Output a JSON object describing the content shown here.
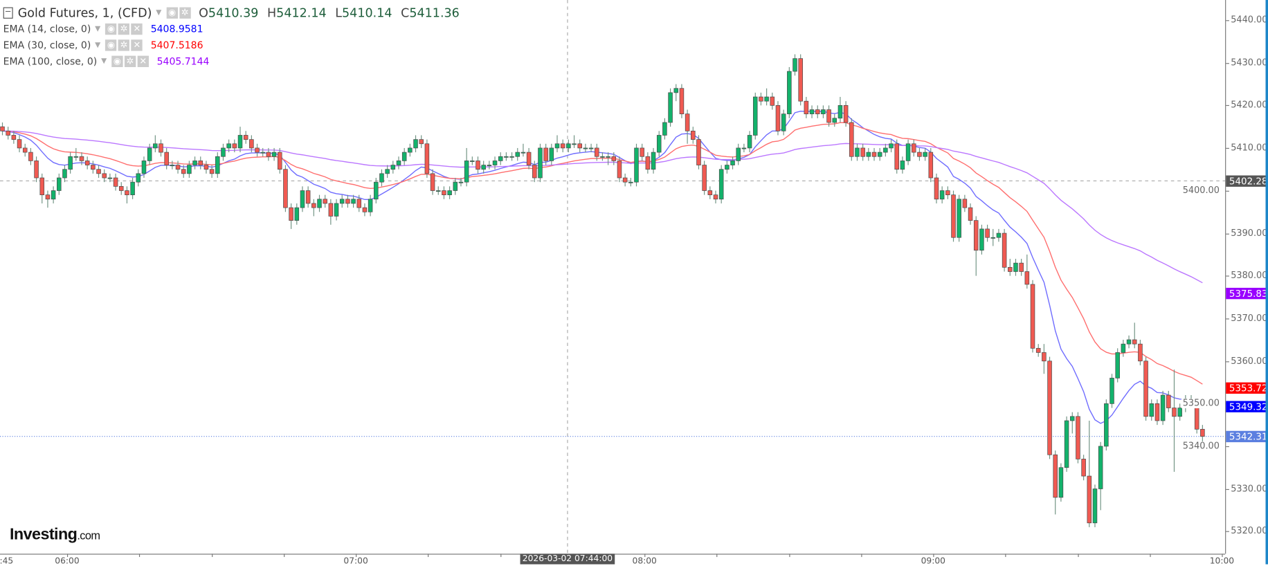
{
  "legend": {
    "title": "Gold Futures, 1, (CFD)",
    "ohlc": {
      "o_label": "O",
      "o": "5410.39",
      "h_label": "H",
      "h": "5412.14",
      "l_label": "L",
      "l": "5410.14",
      "c_label": "C",
      "c": "5411.36"
    },
    "emas": [
      {
        "name": "EMA (14, close, 0)",
        "value": "5408.9581",
        "color": "#0000ff"
      },
      {
        "name": "EMA (30, close, 0)",
        "value": "5407.5186",
        "color": "#ff0000"
      },
      {
        "name": "EMA (100, close, 0)",
        "value": "5405.7144",
        "color": "#9900ff"
      }
    ]
  },
  "logo": {
    "main": "Investing",
    "suffix": ".com"
  },
  "chart_data": {
    "type": "candlestick",
    "interval": "1 minute",
    "ylim": [
      5315,
      5445
    ],
    "y_ticks": [
      "5320.00",
      "5330.00",
      "5340.00",
      "5350.00",
      "5360.00",
      "5370.00",
      "5380.00",
      "5390.00",
      "5400.00",
      "5410.00",
      "5420.00",
      "5430.00",
      "5440.00"
    ],
    "x_ticks": [
      {
        "label": ":45",
        "time": "05:45"
      },
      {
        "label": "06:00",
        "time": "06:00"
      },
      {
        "label": "07:00",
        "time": "07:00"
      },
      {
        "label": "08:00",
        "time": "08:00"
      },
      {
        "label": "09:00",
        "time": "09:00"
      },
      {
        "label": "10:00",
        "time": "10:00"
      }
    ],
    "crosshair": {
      "time_label": "2026-03-02 07:44:00",
      "time": "07:44",
      "price": 5402.28,
      "price_label": "5402.28"
    },
    "price_labels": [
      {
        "value": 5375.83,
        "label": "5375.83",
        "color": "#9900ff",
        "series": "EMA 100"
      },
      {
        "value": 5353.72,
        "label": "5353.72",
        "color": "#ff0000",
        "series": "EMA 30"
      },
      {
        "value": 5349.32,
        "label": "5349.32",
        "color": "#0000ff",
        "series": "EMA 14"
      },
      {
        "value": 5342.31,
        "label": "5342.31",
        "color": "#5b7fe0",
        "series": "last"
      }
    ],
    "colors": {
      "up": "#13b26b",
      "down": "#f05a52",
      "wick": "#6f9282",
      "ema14": "#6f6cff",
      "ema30": "#ff6e6e",
      "ema100": "#bb77ff"
    },
    "ema_periods": [
      14,
      30,
      100
    ],
    "candles_ohlc": [
      [
        5415,
        5416,
        5413,
        5414
      ],
      [
        5414,
        5415,
        5412,
        5413
      ],
      [
        5413,
        5414,
        5411,
        5412
      ],
      [
        5412,
        5413,
        5409,
        5410
      ],
      [
        5410,
        5411,
        5408,
        5409
      ],
      [
        5409,
        5410,
        5406,
        5407
      ],
      [
        5407,
        5408,
        5402,
        5403
      ],
      [
        5403,
        5404,
        5397,
        5399
      ],
      [
        5399,
        5400,
        5396,
        5398
      ],
      [
        5398,
        5401,
        5397,
        5400
      ],
      [
        5400,
        5404,
        5399,
        5403
      ],
      [
        5403,
        5406,
        5402,
        5405
      ],
      [
        5405,
        5409,
        5404,
        5408
      ],
      [
        5408,
        5410,
        5407,
        5408
      ],
      [
        5408,
        5409,
        5406,
        5407
      ],
      [
        5407,
        5408,
        5405,
        5406
      ],
      [
        5406,
        5407,
        5404,
        5405
      ],
      [
        5405,
        5406,
        5403,
        5404
      ],
      [
        5404,
        5405,
        5402,
        5403
      ],
      [
        5403,
        5404,
        5402,
        5403
      ],
      [
        5403,
        5404,
        5400,
        5401
      ],
      [
        5401,
        5402,
        5399,
        5400
      ],
      [
        5400,
        5401,
        5397,
        5399
      ],
      [
        5399,
        5403,
        5398,
        5402
      ],
      [
        5402,
        5405,
        5401,
        5404
      ],
      [
        5404,
        5408,
        5403,
        5407
      ],
      [
        5407,
        5411,
        5406,
        5410
      ],
      [
        5410,
        5413,
        5409,
        5411
      ],
      [
        5411,
        5412,
        5408,
        5409
      ],
      [
        5409,
        5410,
        5405,
        5406
      ],
      [
        5406,
        5407,
        5405,
        5406
      ],
      [
        5406,
        5407,
        5404,
        5405
      ],
      [
        5405,
        5406,
        5403,
        5404
      ],
      [
        5404,
        5407,
        5403,
        5406
      ],
      [
        5406,
        5408,
        5405,
        5407
      ],
      [
        5407,
        5408,
        5405,
        5406
      ],
      [
        5406,
        5407,
        5404,
        5405
      ],
      [
        5405,
        5406,
        5403,
        5404
      ],
      [
        5404,
        5409,
        5403,
        5408
      ],
      [
        5408,
        5411,
        5407,
        5410
      ],
      [
        5410,
        5412,
        5409,
        5411
      ],
      [
        5411,
        5412,
        5409,
        5410
      ],
      [
        5410,
        5415,
        5409,
        5413
      ],
      [
        5413,
        5414,
        5411,
        5412
      ],
      [
        5412,
        5413,
        5409,
        5410
      ],
      [
        5410,
        5411,
        5408,
        5409
      ],
      [
        5409,
        5410,
        5408,
        5409
      ],
      [
        5409,
        5410,
        5407,
        5408
      ],
      [
        5408,
        5410,
        5407,
        5409
      ],
      [
        5409,
        5410,
        5404,
        5405
      ],
      [
        5405,
        5406,
        5395,
        5396
      ],
      [
        5396,
        5397,
        5391,
        5393
      ],
      [
        5393,
        5397,
        5392,
        5396
      ],
      [
        5396,
        5401,
        5395,
        5400
      ],
      [
        5400,
        5401,
        5396,
        5397
      ],
      [
        5397,
        5398,
        5394,
        5396
      ],
      [
        5396,
        5399,
        5395,
        5398
      ],
      [
        5398,
        5399,
        5396,
        5397
      ],
      [
        5397,
        5398,
        5392,
        5394
      ],
      [
        5394,
        5398,
        5393,
        5397
      ],
      [
        5397,
        5399,
        5396,
        5398
      ],
      [
        5398,
        5399,
        5396,
        5397
      ],
      [
        5397,
        5399,
        5396,
        5398
      ],
      [
        5398,
        5399,
        5395,
        5396
      ],
      [
        5396,
        5397,
        5394,
        5395
      ],
      [
        5395,
        5399,
        5394,
        5398
      ],
      [
        5398,
        5403,
        5397,
        5402
      ],
      [
        5402,
        5405,
        5401,
        5404
      ],
      [
        5404,
        5406,
        5403,
        5405
      ],
      [
        5405,
        5407,
        5404,
        5406
      ],
      [
        5406,
        5408,
        5405,
        5407
      ],
      [
        5407,
        5410,
        5406,
        5409
      ],
      [
        5409,
        5411,
        5408,
        5410
      ],
      [
        5410,
        5413,
        5409,
        5412
      ],
      [
        5412,
        5413,
        5410,
        5411
      ],
      [
        5411,
        5412,
        5403,
        5404
      ],
      [
        5404,
        5405,
        5399,
        5400
      ],
      [
        5400,
        5401,
        5399,
        5400
      ],
      [
        5400,
        5401,
        5398,
        5399
      ],
      [
        5399,
        5401,
        5398,
        5400
      ],
      [
        5400,
        5403,
        5399,
        5402
      ],
      [
        5402,
        5403,
        5401,
        5402
      ],
      [
        5402,
        5410,
        5401,
        5407
      ],
      [
        5407,
        5408,
        5406,
        5407
      ],
      [
        5407,
        5408,
        5404,
        5405
      ],
      [
        5405,
        5407,
        5404,
        5406
      ],
      [
        5406,
        5407,
        5405,
        5406
      ],
      [
        5406,
        5408,
        5405,
        5407
      ],
      [
        5407,
        5409,
        5406,
        5408
      ],
      [
        5408,
        5409,
        5407,
        5408
      ],
      [
        5408,
        5409,
        5407,
        5408
      ],
      [
        5408,
        5410,
        5407,
        5409
      ],
      [
        5409,
        5411,
        5408,
        5409
      ],
      [
        5409,
        5410,
        5405,
        5406
      ],
      [
        5406,
        5407,
        5402,
        5403
      ],
      [
        5403,
        5411,
        5402,
        5410
      ],
      [
        5410,
        5411,
        5406,
        5407
      ],
      [
        5407,
        5411,
        5406,
        5410
      ],
      [
        5410,
        5413,
        5409,
        5411
      ],
      [
        5411,
        5412,
        5409,
        5410
      ],
      [
        5410,
        5412,
        5409,
        5411
      ],
      [
        5411,
        5413,
        5410,
        5411
      ],
      [
        5411,
        5412,
        5409,
        5410
      ],
      [
        5410,
        5411,
        5409,
        5410
      ],
      [
        5410,
        5411,
        5409,
        5410
      ],
      [
        5410,
        5411,
        5407,
        5408
      ],
      [
        5408,
        5409,
        5407,
        5408
      ],
      [
        5408,
        5409,
        5406,
        5408
      ],
      [
        5408,
        5409,
        5406,
        5407
      ],
      [
        5407,
        5408,
        5402,
        5403
      ],
      [
        5403,
        5404,
        5401,
        5402
      ],
      [
        5402,
        5403,
        5401,
        5402
      ],
      [
        5402,
        5411,
        5401,
        5410
      ],
      [
        5410,
        5411,
        5407,
        5408
      ],
      [
        5408,
        5409,
        5404,
        5405
      ],
      [
        5405,
        5410,
        5404,
        5409
      ],
      [
        5409,
        5414,
        5408,
        5413
      ],
      [
        5413,
        5417,
        5412,
        5416
      ],
      [
        5416,
        5424,
        5415,
        5423
      ],
      [
        5423,
        5425,
        5421,
        5424
      ],
      [
        5424,
        5425,
        5417,
        5418
      ],
      [
        5418,
        5419,
        5411,
        5414
      ],
      [
        5414,
        5415,
        5411,
        5412
      ],
      [
        5412,
        5413,
        5405,
        5406
      ],
      [
        5406,
        5407,
        5399,
        5400
      ],
      [
        5400,
        5401,
        5398,
        5399
      ],
      [
        5399,
        5400,
        5397,
        5398
      ],
      [
        5398,
        5406,
        5397,
        5405
      ],
      [
        5405,
        5407,
        5404,
        5406
      ],
      [
        5406,
        5408,
        5405,
        5407
      ],
      [
        5407,
        5411,
        5406,
        5410
      ],
      [
        5410,
        5411,
        5409,
        5410
      ],
      [
        5410,
        5414,
        5409,
        5413
      ],
      [
        5413,
        5423,
        5412,
        5422
      ],
      [
        5422,
        5423,
        5420,
        5421
      ],
      [
        5421,
        5424,
        5420,
        5422
      ],
      [
        5422,
        5423,
        5419,
        5420
      ],
      [
        5420,
        5421,
        5413,
        5414
      ],
      [
        5414,
        5419,
        5413,
        5418
      ],
      [
        5418,
        5429,
        5417,
        5428
      ],
      [
        5428,
        5432,
        5427,
        5431
      ],
      [
        5431,
        5432,
        5420,
        5421
      ],
      [
        5421,
        5422,
        5417,
        5418
      ],
      [
        5418,
        5420,
        5417,
        5419
      ],
      [
        5419,
        5420,
        5417,
        5418
      ],
      [
        5418,
        5420,
        5417,
        5419
      ],
      [
        5419,
        5420,
        5415,
        5416
      ],
      [
        5416,
        5418,
        5415,
        5417
      ],
      [
        5417,
        5422,
        5416,
        5420
      ],
      [
        5420,
        5421,
        5415,
        5416
      ],
      [
        5416,
        5417,
        5407,
        5408
      ],
      [
        5408,
        5411,
        5407,
        5410
      ],
      [
        5410,
        5411,
        5407,
        5408
      ],
      [
        5408,
        5410,
        5407,
        5409
      ],
      [
        5409,
        5410,
        5407,
        5408
      ],
      [
        5408,
        5410,
        5407,
        5409
      ],
      [
        5409,
        5411,
        5408,
        5410
      ],
      [
        5410,
        5412,
        5409,
        5411
      ],
      [
        5411,
        5412,
        5404,
        5405
      ],
      [
        5405,
        5408,
        5404,
        5407
      ],
      [
        5407,
        5412,
        5406,
        5411
      ],
      [
        5411,
        5412,
        5408,
        5409
      ],
      [
        5409,
        5410,
        5407,
        5408
      ],
      [
        5408,
        5410,
        5407,
        5409
      ],
      [
        5409,
        5410,
        5402,
        5403
      ],
      [
        5403,
        5404,
        5397,
        5398
      ],
      [
        5398,
        5401,
        5397,
        5400
      ],
      [
        5400,
        5401,
        5398,
        5399
      ],
      [
        5399,
        5400,
        5388,
        5389
      ],
      [
        5389,
        5399,
        5388,
        5398
      ],
      [
        5398,
        5399,
        5395,
        5396
      ],
      [
        5396,
        5397,
        5392,
        5393
      ],
      [
        5393,
        5394,
        5380,
        5386
      ],
      [
        5386,
        5392,
        5385,
        5391
      ],
      [
        5391,
        5392,
        5388,
        5389
      ],
      [
        5389,
        5391,
        5387,
        5389
      ],
      [
        5389,
        5391,
        5388,
        5390
      ],
      [
        5390,
        5391,
        5381,
        5382
      ],
      [
        5382,
        5384,
        5380,
        5381
      ],
      [
        5381,
        5384,
        5380,
        5383
      ],
      [
        5383,
        5384,
        5380,
        5381
      ],
      [
        5381,
        5385,
        5377,
        5378
      ],
      [
        5378,
        5379,
        5362,
        5363
      ],
      [
        5363,
        5364,
        5361,
        5362
      ],
      [
        5362,
        5364,
        5357,
        5360
      ],
      [
        5360,
        5361,
        5337,
        5338
      ],
      [
        5338,
        5339,
        5324,
        5328
      ],
      [
        5328,
        5336,
        5327,
        5335
      ],
      [
        5335,
        5347,
        5334,
        5346
      ],
      [
        5346,
        5348,
        5343,
        5347
      ],
      [
        5347,
        5348,
        5336,
        5337
      ],
      [
        5337,
        5338,
        5332,
        5333
      ],
      [
        5333,
        5346,
        5321,
        5322
      ],
      [
        5322,
        5331,
        5321,
        5330
      ],
      [
        5330,
        5341,
        5325,
        5340
      ],
      [
        5340,
        5351,
        5339,
        5350
      ],
      [
        5350,
        5357,
        5349,
        5356
      ],
      [
        5356,
        5363,
        5355,
        5362
      ],
      [
        5362,
        5365,
        5361,
        5364
      ],
      [
        5364,
        5366,
        5363,
        5365
      ],
      [
        5365,
        5369,
        5363,
        5364
      ],
      [
        5364,
        5365,
        5359,
        5360
      ],
      [
        5360,
        5361,
        5346,
        5347
      ],
      [
        5347,
        5351,
        5346,
        5350
      ],
      [
        5350,
        5351,
        5345,
        5346
      ],
      [
        5346,
        5353,
        5345,
        5352
      ],
      [
        5352,
        5353,
        5348,
        5349
      ],
      [
        5349,
        5358,
        5334,
        5347
      ],
      [
        5347,
        5350,
        5346,
        5349
      ],
      [
        5349,
        5352,
        5348,
        5351
      ],
      [
        5351,
        5352,
        5349,
        5350
      ],
      [
        5350,
        5351,
        5343,
        5344
      ],
      [
        5344,
        5345,
        5341,
        5342.31
      ]
    ]
  }
}
